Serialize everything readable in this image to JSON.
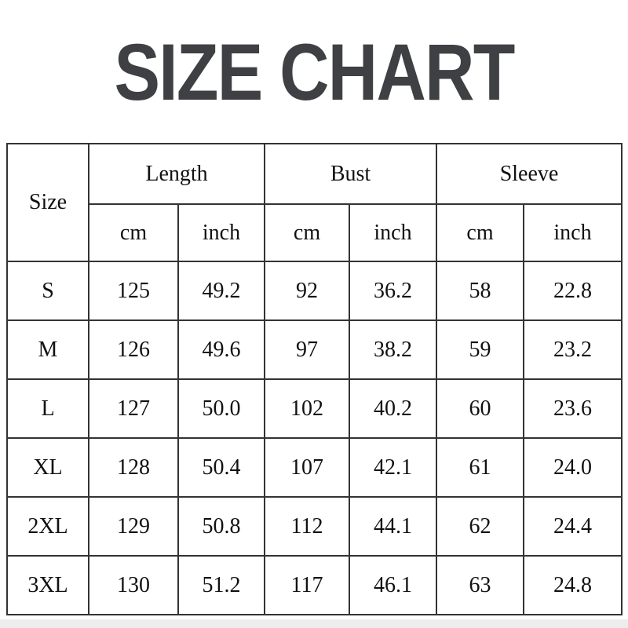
{
  "title": "SIZE CHART",
  "colors": {
    "title_text": "#3e4043",
    "table_border": "#333333",
    "table_text": "#111111",
    "bottom_strip": "#ededed",
    "background": "#ffffff"
  },
  "table": {
    "corner_header": "Size",
    "group_headers": [
      {
        "label": "Length"
      },
      {
        "label": "Bust"
      },
      {
        "label": "Sleeve"
      }
    ],
    "unit_row": [
      "cm",
      "inch",
      "cm",
      "inch",
      "cm",
      "inch"
    ],
    "rows": [
      [
        "S",
        "125",
        "49.2",
        "92",
        "36.2",
        "58",
        "22.8"
      ],
      [
        "M",
        "126",
        "49.6",
        "97",
        "38.2",
        "59",
        "23.2"
      ],
      [
        "L",
        "127",
        "50.0",
        "102",
        "40.2",
        "60",
        "23.6"
      ],
      [
        "XL",
        "128",
        "50.4",
        "107",
        "42.1",
        "61",
        "24.0"
      ],
      [
        "2XL",
        "129",
        "50.8",
        "112",
        "44.1",
        "62",
        "24.4"
      ],
      [
        "3XL",
        "130",
        "51.2",
        "117",
        "46.1",
        "63",
        "24.8"
      ]
    ]
  }
}
